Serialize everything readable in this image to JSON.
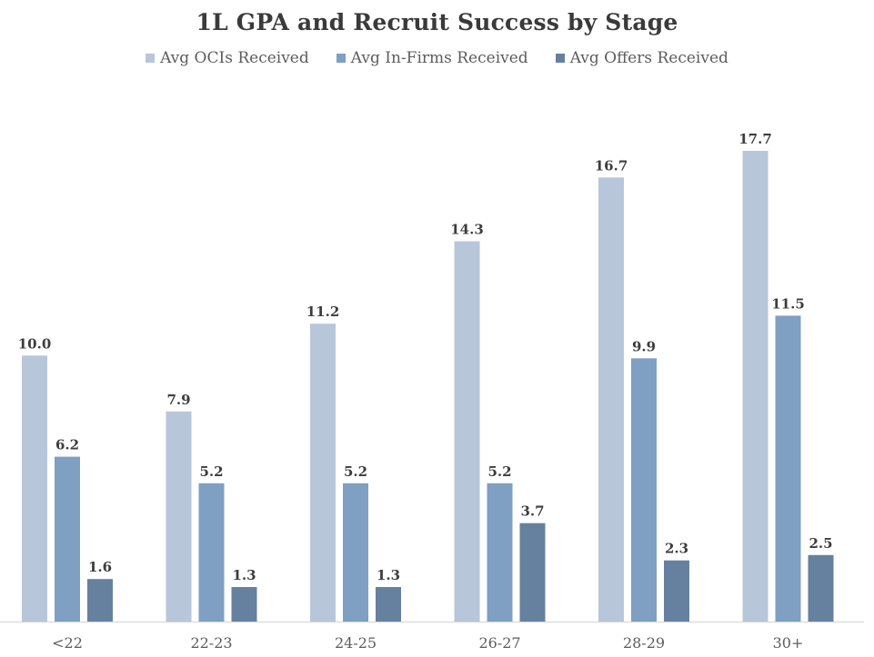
{
  "chart_data": {
    "type": "bar",
    "title": "1L GPA and Recruit Success by Stage",
    "xlabel": "",
    "ylabel": "",
    "categories": [
      "<22",
      "22-23",
      "24-25",
      "26-27",
      "28-29",
      "30+"
    ],
    "series": [
      {
        "name": "Avg OCIs Received",
        "color": "#b8c6da",
        "values": [
          10.0,
          7.9,
          11.2,
          14.3,
          16.7,
          17.7
        ]
      },
      {
        "name": "Avg In-Firms Received",
        "color": "#7f9fc3",
        "values": [
          6.2,
          5.2,
          5.2,
          5.2,
          9.9,
          11.5
        ]
      },
      {
        "name": "Avg Offers Received",
        "color": "#66819f",
        "values": [
          1.6,
          1.3,
          1.3,
          3.7,
          2.3,
          2.5
        ]
      }
    ],
    "ylim": [
      0,
      20
    ],
    "grid": false,
    "legend": "top-center"
  }
}
